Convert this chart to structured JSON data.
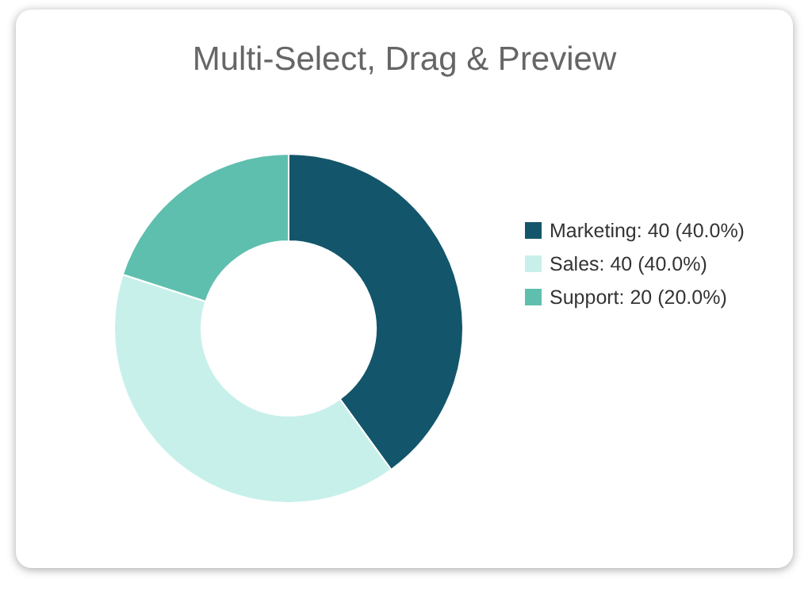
{
  "chart_data": {
    "type": "donut",
    "title": "Multi-Select, Drag & Preview",
    "categories": [
      "Marketing: 40 (40.0%)",
      "Sales: 40 (40.0%)",
      "Support: 20 (20.0%)"
    ],
    "values": [
      40,
      40,
      20
    ],
    "colors": [
      "#13566b",
      "#c8f0eb",
      "#5fbfae"
    ],
    "legend": "right"
  }
}
